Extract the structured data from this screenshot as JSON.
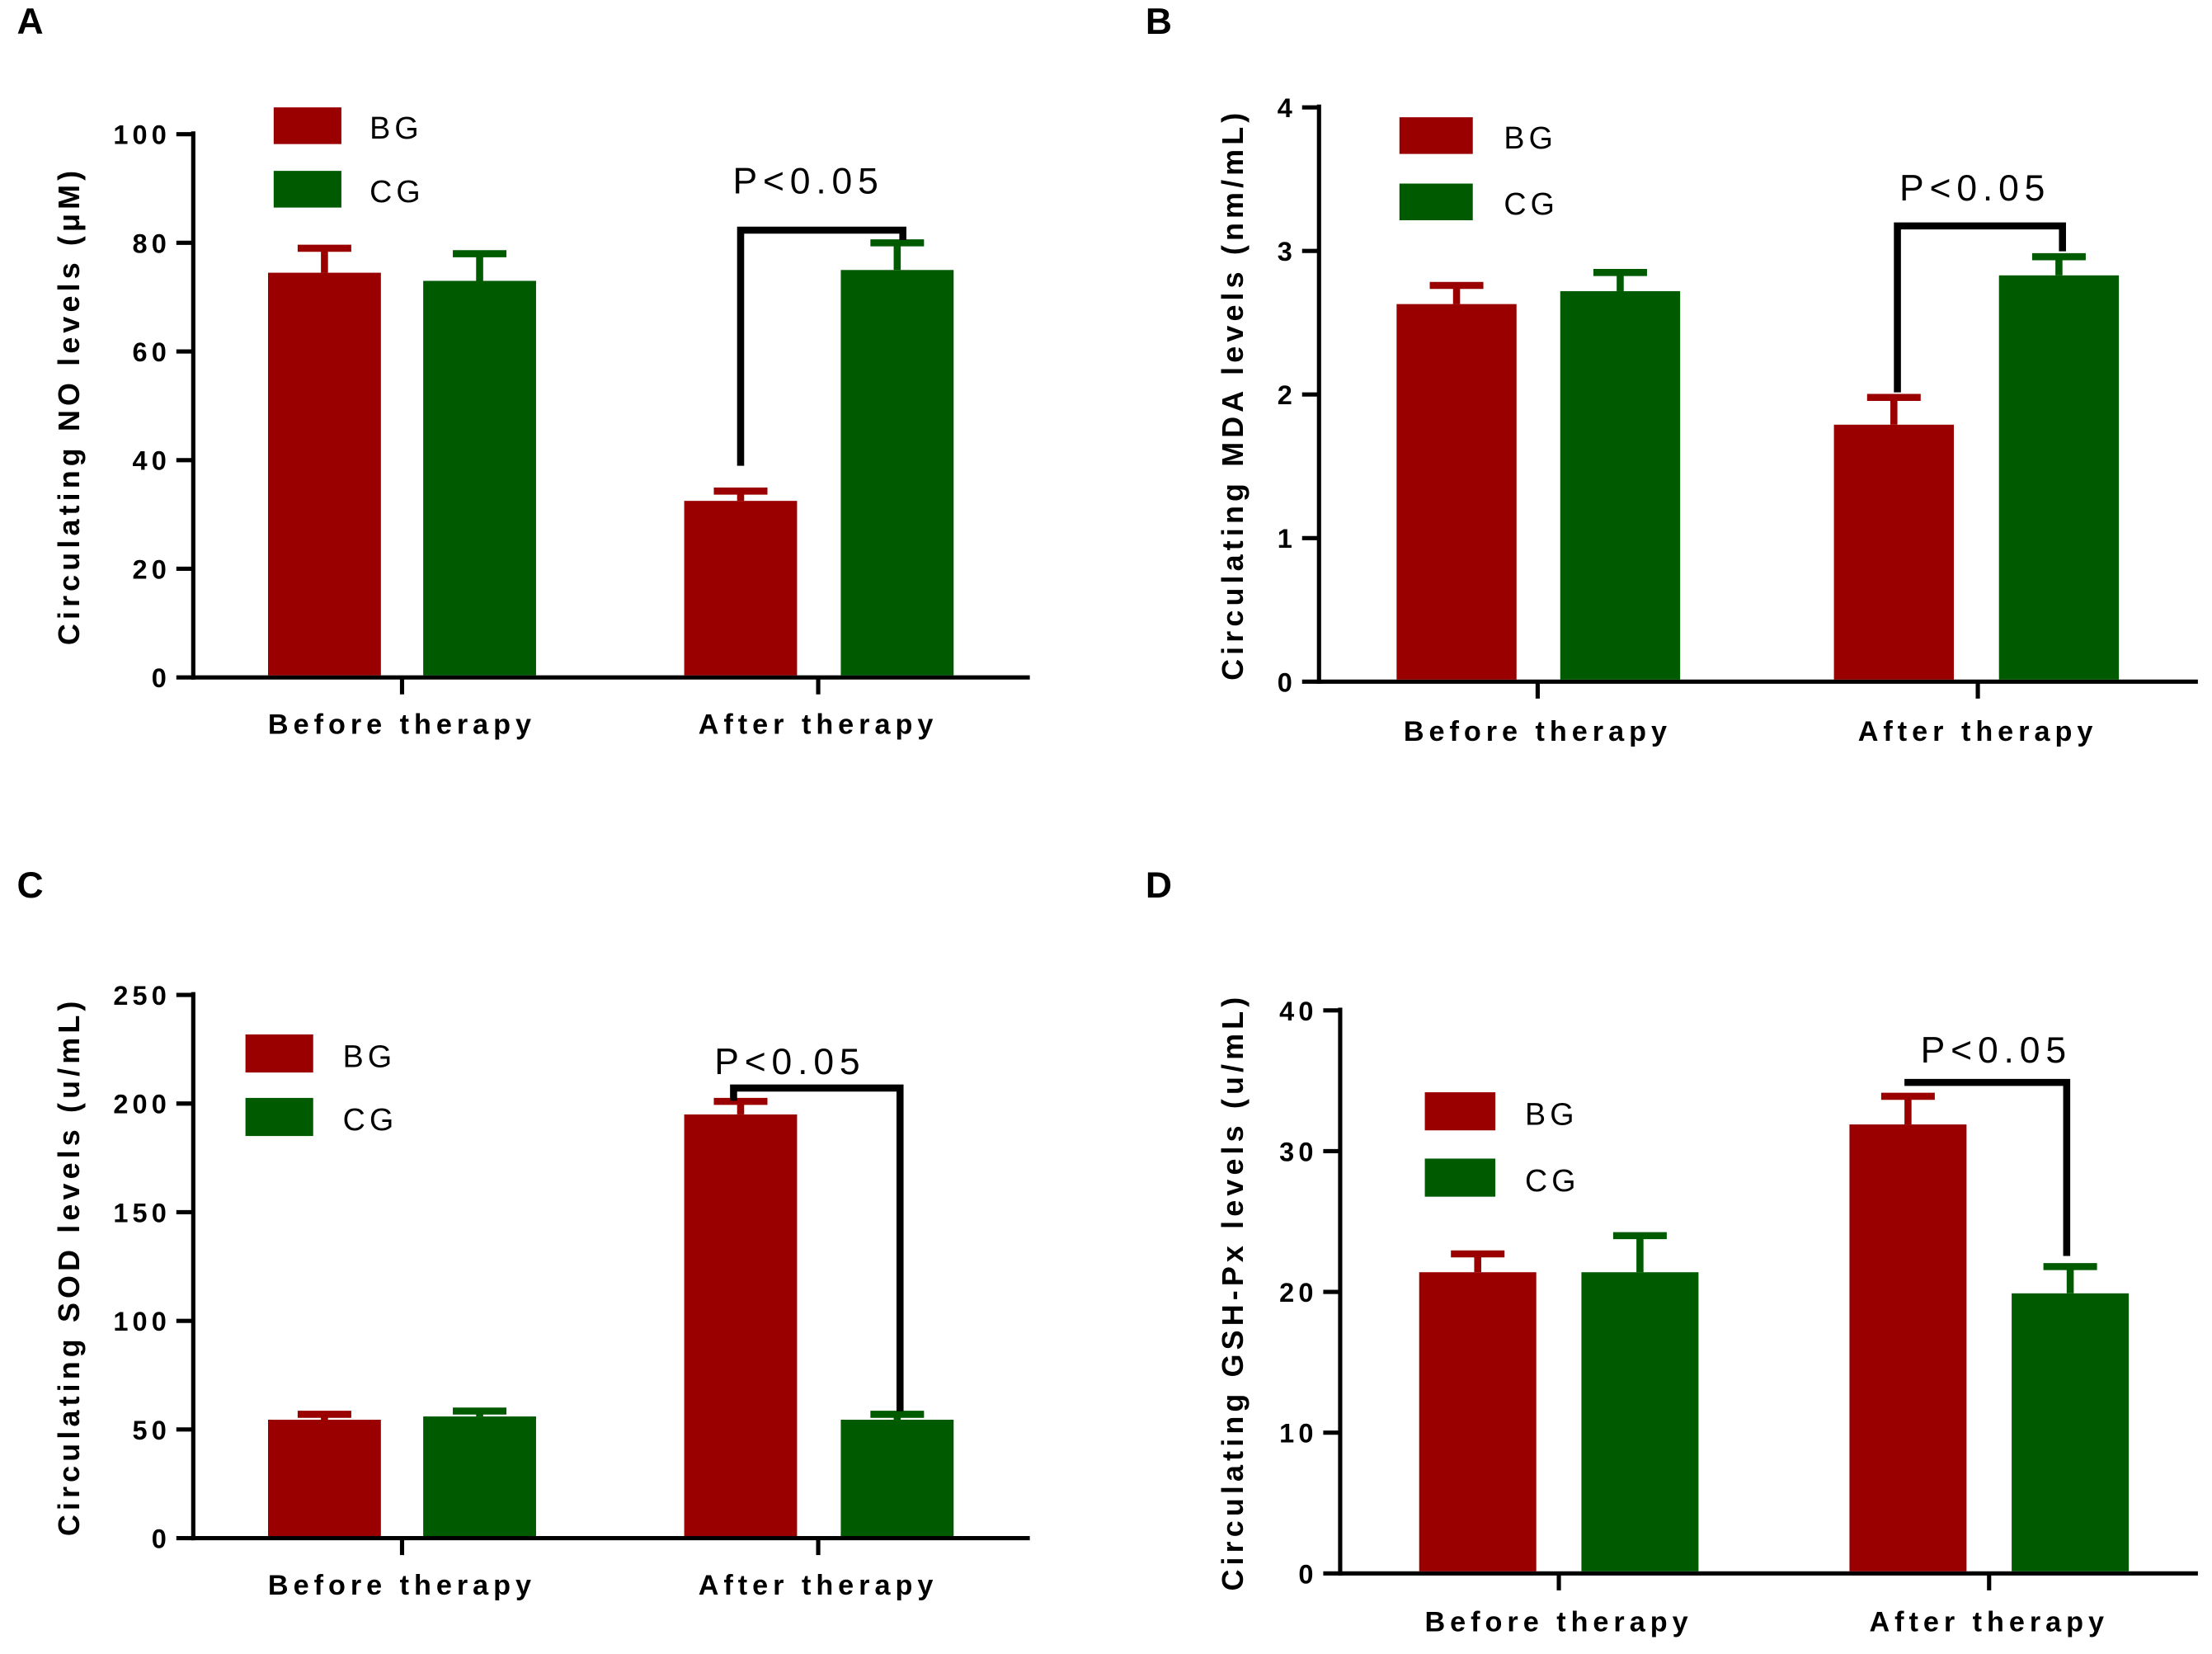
{
  "colors": {
    "BG": "#9b0000",
    "CG": "#005a00",
    "axis": "#000000"
  },
  "chart_data": [
    {
      "type": "bar",
      "panel": "A",
      "ylabel": "Circulating NO levels (μM)",
      "ylim": [
        0,
        100
      ],
      "yticks": [
        "0",
        "20",
        "40",
        "60",
        "80",
        "100"
      ],
      "ytick_values": [
        0,
        20,
        40,
        60,
        80,
        100
      ],
      "categories": [
        "Before therapy",
        "After therapy"
      ],
      "legend": [
        "BG",
        "CG"
      ],
      "legend_position": "top-left",
      "series": [
        {
          "name": "BG",
          "values": [
            74.5,
            32.5
          ],
          "error": [
            4.5,
            1.8
          ]
        },
        {
          "name": "CG",
          "values": [
            73,
            75
          ],
          "error": [
            5,
            5
          ]
        }
      ],
      "annotation": "P<0.05"
    },
    {
      "type": "bar",
      "panel": "B",
      "ylabel": "Circulating MDA levels (nm/mL)",
      "ylim": [
        0,
        4
      ],
      "yticks": [
        "0",
        "1",
        "2",
        "3",
        "4"
      ],
      "ytick_values": [
        0,
        1,
        2,
        3,
        4
      ],
      "categories": [
        "Before therapy",
        "After therapy"
      ],
      "legend": [
        "BG",
        "CG"
      ],
      "legend_position": "top-left",
      "series": [
        {
          "name": "BG",
          "values": [
            2.63,
            1.79
          ],
          "error": [
            0.13,
            0.19
          ]
        },
        {
          "name": "CG",
          "values": [
            2.72,
            2.83
          ],
          "error": [
            0.13,
            0.13
          ]
        }
      ],
      "annotation": "P<0.05"
    },
    {
      "type": "bar",
      "panel": "C",
      "ylabel": "Circulating SOD levels (u/mL)",
      "ylim": [
        0,
        250
      ],
      "yticks": [
        "0",
        "50",
        "100",
        "150",
        "200",
        "250"
      ],
      "ytick_values": [
        0,
        50,
        100,
        150,
        200,
        250
      ],
      "categories": [
        "Before therapy",
        "After therapy"
      ],
      "legend": [
        "BG",
        "CG"
      ],
      "legend_position": "top-left",
      "series": [
        {
          "name": "BG",
          "values": [
            54.5,
            195
          ],
          "error": [
            2.5,
            6
          ]
        },
        {
          "name": "CG",
          "values": [
            56,
            54.5
          ],
          "error": [
            2.5,
            2.5
          ]
        }
      ],
      "annotation": "P<0.05"
    },
    {
      "type": "bar",
      "panel": "D",
      "ylabel": "Circulating GSH-Px levels (u/mL)",
      "ylim": [
        0,
        40
      ],
      "yticks": [
        "0",
        "10",
        "20",
        "30",
        "40"
      ],
      "ytick_values": [
        0,
        10,
        20,
        30,
        40
      ],
      "categories": [
        "Before therapy",
        "After therapy"
      ],
      "legend": [
        "BG",
        "CG"
      ],
      "legend_position": "top-left",
      "series": [
        {
          "name": "BG",
          "values": [
            21.4,
            31.9
          ],
          "error": [
            1.3,
            2
          ]
        },
        {
          "name": "CG",
          "values": [
            21.4,
            19.9
          ],
          "error": [
            2.6,
            1.9
          ]
        }
      ],
      "annotation": "P<0.05"
    }
  ]
}
